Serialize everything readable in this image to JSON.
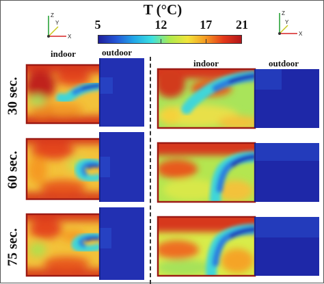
{
  "colorbar": {
    "title": "T (°C)",
    "ticks": [
      "5",
      "12",
      "17",
      "21"
    ],
    "tick_values": [
      5,
      12,
      17,
      21
    ],
    "min": 5,
    "max": 21,
    "colormap": [
      "#1e1e9a",
      "#2456d6",
      "#22a8e8",
      "#3ce0e0",
      "#aeea4e",
      "#f2e43a",
      "#f59a22",
      "#e4391a",
      "#b2161a"
    ]
  },
  "axes_left": {
    "z": "Z",
    "y": "Y",
    "x": "X"
  },
  "axes_right": {
    "z": "Z",
    "y": "Y",
    "x": "X"
  },
  "regions": {
    "indoor": "indoor",
    "outdoor": "outdoor"
  },
  "rows": [
    {
      "time": "30 sec."
    },
    {
      "time": "60 sec."
    },
    {
      "time": "75 sec."
    }
  ],
  "colors": {
    "hot": "#c0241a",
    "mid": "#f3c23a",
    "cold": "#1c2fb4",
    "cool": "#2c7fe0",
    "cyan": "#40d6d8"
  }
}
